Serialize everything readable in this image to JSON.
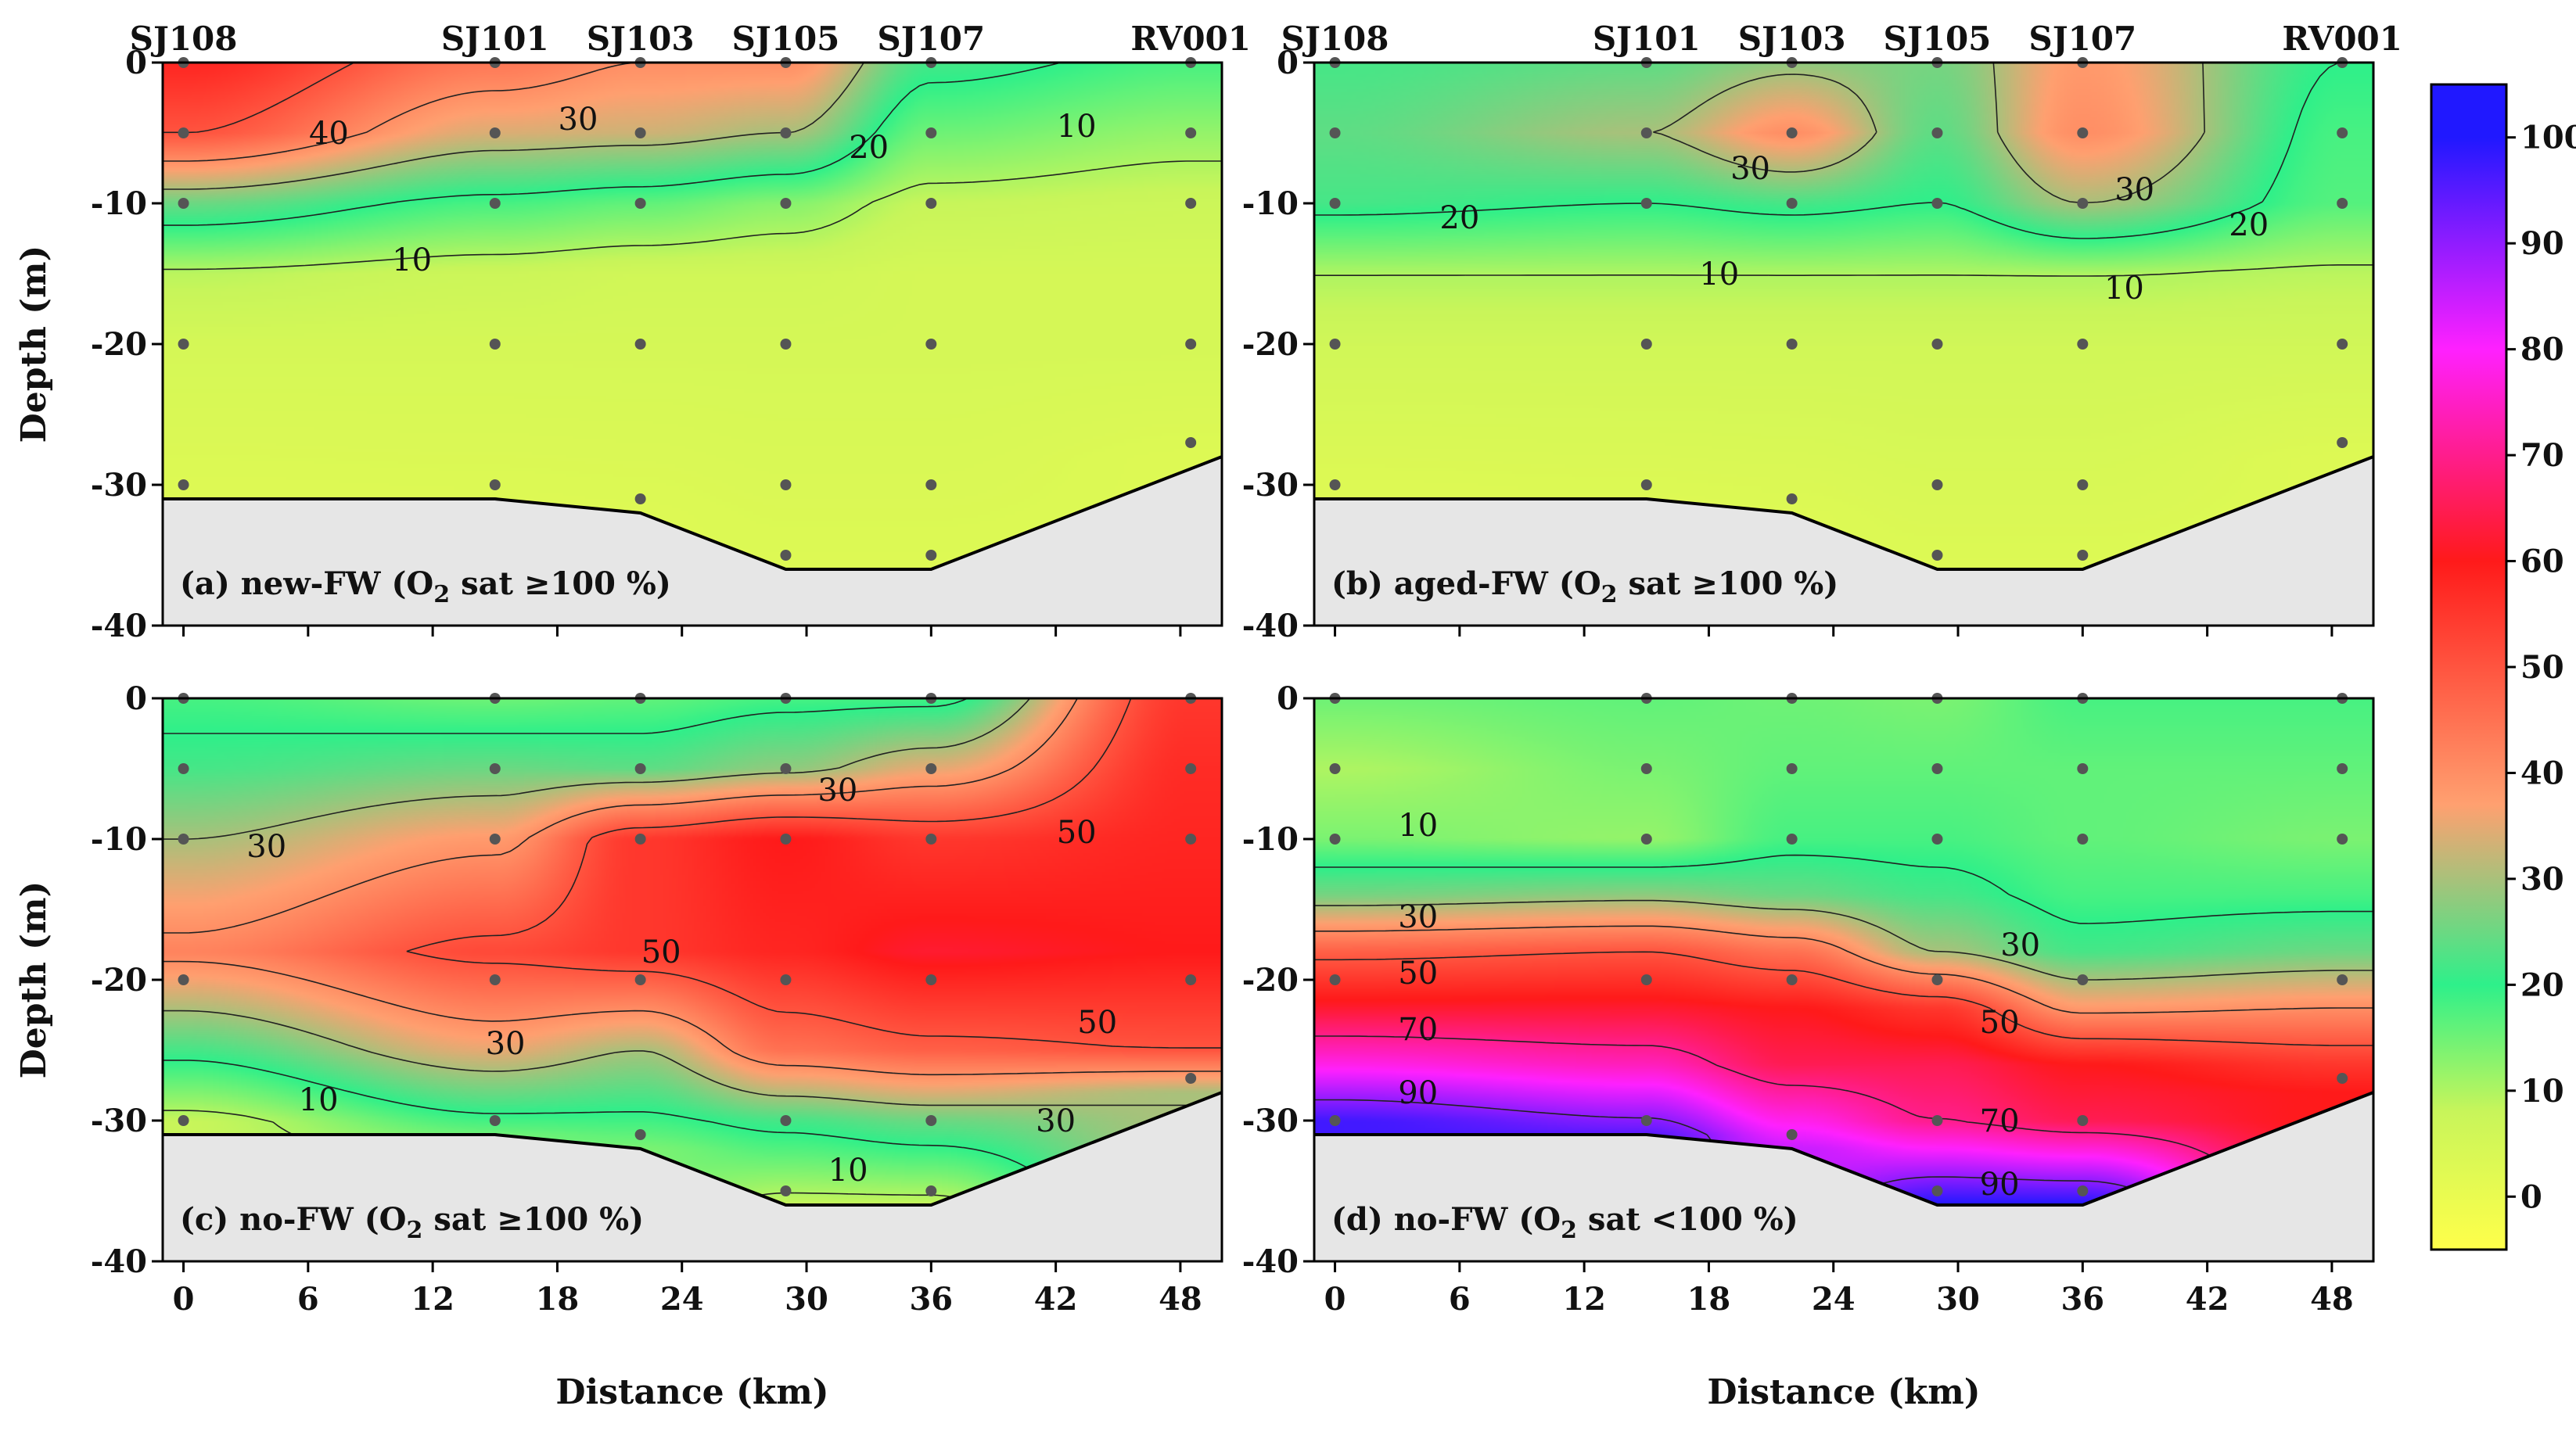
{
  "chart_data": {
    "type": "heatmap",
    "colorbar": {
      "ticks": [
        0,
        10,
        20,
        30,
        40,
        50,
        60,
        70,
        80,
        90,
        100
      ],
      "range": [
        -5,
        105
      ],
      "colors": [
        "#ffff4a",
        "#c8f55a",
        "#2ef08a",
        "#ffa070",
        "#ff1a1a",
        "#ff20ff",
        "#2018ff"
      ]
    },
    "stations": [
      {
        "name": "SJ108",
        "x": 0
      },
      {
        "name": "SJ101",
        "x": 15
      },
      {
        "name": "SJ103",
        "x": 22
      },
      {
        "name": "SJ105",
        "x": 29
      },
      {
        "name": "SJ107",
        "x": 36
      },
      {
        "name": "RV001",
        "x": 48.5
      }
    ],
    "bathymetry": [
      [
        -1,
        -31
      ],
      [
        15,
        -31
      ],
      [
        22,
        -32
      ],
      [
        29,
        -36
      ],
      [
        36,
        -36
      ],
      [
        50,
        -28
      ]
    ],
    "xlim": [
      -1,
      50
    ],
    "ylim": [
      -40,
      0
    ],
    "xticks": [
      0,
      6,
      12,
      18,
      24,
      30,
      36,
      42,
      48
    ],
    "yticks": [
      0,
      -10,
      -20,
      -30,
      -40
    ],
    "panels": [
      {
        "label_prefix": "(a) new-FW (O",
        "label_sub": "2",
        "label_suffix": " sat ≥100 %)",
        "xlabel": "",
        "ylabel": "Depth (m)",
        "stations_shown": true,
        "sample_depths": [
          [
            0,
            -5,
            -10,
            -20,
            -30
          ],
          [
            0,
            -5,
            -10,
            -20,
            -30
          ],
          [
            0,
            -5,
            -10,
            -20,
            -31
          ],
          [
            0,
            -5,
            -10,
            -20,
            -30,
            -35
          ],
          [
            0,
            -5,
            -10,
            -20,
            -30,
            -35
          ],
          [
            0,
            -5,
            -10,
            -20,
            -27
          ]
        ],
        "profiles": [
          [
            [
              0,
              58
            ],
            [
              -5,
              50
            ],
            [
              -10,
              25
            ],
            [
              -15,
              9
            ],
            [
              -20,
              5
            ],
            [
              -30,
              3
            ]
          ],
          [
            [
              0,
              44
            ],
            [
              -5,
              34
            ],
            [
              -10,
              18
            ],
            [
              -15,
              7
            ],
            [
              -20,
              5
            ],
            [
              -31,
              3
            ]
          ],
          [
            [
              0,
              40
            ],
            [
              -5,
              33
            ],
            [
              -10,
              16
            ],
            [
              -15,
              6
            ],
            [
              -20,
              5
            ],
            [
              -32,
              3
            ]
          ],
          [
            [
              0,
              40
            ],
            [
              -5,
              30
            ],
            [
              -10,
              13
            ],
            [
              -15,
              6
            ],
            [
              -20,
              5
            ],
            [
              -36,
              3
            ]
          ],
          [
            [
              0,
              22
            ],
            [
              -5,
              15
            ],
            [
              -10,
              8
            ],
            [
              -15,
              5
            ],
            [
              -20,
              5
            ],
            [
              -36,
              3
            ]
          ],
          [
            [
              0,
              18
            ],
            [
              -5,
              12
            ],
            [
              -10,
              7
            ],
            [
              -15,
              5
            ],
            [
              -20,
              5
            ],
            [
              -28,
              3
            ]
          ]
        ],
        "contour_labels": [
          {
            "text": "40",
            "x": 7,
            "y": -5
          },
          {
            "text": "30",
            "x": 19,
            "y": -4
          },
          {
            "text": "20",
            "x": 33,
            "y": -6
          },
          {
            "text": "10",
            "x": 43,
            "y": -4.5
          },
          {
            "text": "10",
            "x": 11,
            "y": -14
          }
        ]
      },
      {
        "label_prefix": "(b) aged-FW (O",
        "label_sub": "2",
        "label_suffix": " sat ≥100 %)",
        "xlabel": "",
        "ylabel": "",
        "stations_shown": true,
        "sample_depths": [
          [
            0,
            -5,
            -10,
            -20,
            -30
          ],
          [
            0,
            -5,
            -10,
            -20,
            -30
          ],
          [
            0,
            -5,
            -10,
            -20,
            -31
          ],
          [
            0,
            -5,
            -10,
            -20,
            -30,
            -35
          ],
          [
            0,
            -5,
            -10,
            -20,
            -30,
            -35
          ],
          [
            0,
            -5,
            -10,
            -20,
            -27
          ]
        ],
        "profiles": [
          [
            [
              0,
              22
            ],
            [
              -5,
              24
            ],
            [
              -10,
              22
            ],
            [
              -15,
              10
            ],
            [
              -20,
              6
            ],
            [
              -30,
              3
            ]
          ],
          [
            [
              0,
              24
            ],
            [
              -5,
              30
            ],
            [
              -10,
              20
            ],
            [
              -15,
              10
            ],
            [
              -20,
              6
            ],
            [
              -31,
              3
            ]
          ],
          [
            [
              0,
              28
            ],
            [
              -5,
              40
            ],
            [
              -10,
              22
            ],
            [
              -15,
              10
            ],
            [
              -20,
              6
            ],
            [
              -32,
              3
            ]
          ],
          [
            [
              0,
              26
            ],
            [
              -5,
              24
            ],
            [
              -10,
              20
            ],
            [
              -15,
              10
            ],
            [
              -20,
              6
            ],
            [
              -36,
              3
            ]
          ],
          [
            [
              0,
              38
            ],
            [
              -5,
              40
            ],
            [
              -10,
              30
            ],
            [
              -15,
              10
            ],
            [
              -20,
              6
            ],
            [
              -36,
              3
            ]
          ],
          [
            [
              0,
              20
            ],
            [
              -5,
              18
            ],
            [
              -10,
              17
            ],
            [
              -15,
              9
            ],
            [
              -20,
              6
            ],
            [
              -28,
              3
            ]
          ]
        ],
        "contour_labels": [
          {
            "text": "30",
            "x": 20,
            "y": -7.5
          },
          {
            "text": "20",
            "x": 6,
            "y": -11
          },
          {
            "text": "10",
            "x": 18.5,
            "y": -15
          },
          {
            "text": "30",
            "x": 38.5,
            "y": -9
          },
          {
            "text": "20",
            "x": 44,
            "y": -11.5
          },
          {
            "text": "10",
            "x": 38,
            "y": -16
          }
        ]
      },
      {
        "label_prefix": "(c) no-FW (O",
        "label_sub": "2",
        "label_suffix": " sat ≥100 %)",
        "xlabel": "Distance (km)",
        "ylabel": "Depth (m)",
        "stations_shown": false,
        "sample_depths": [
          [
            0,
            -5,
            -10,
            -20,
            -30
          ],
          [
            0,
            -5,
            -10,
            -20,
            -30
          ],
          [
            0,
            -5,
            -10,
            -20,
            -31
          ],
          [
            0,
            -5,
            -10,
            -20,
            -30,
            -35
          ],
          [
            0,
            -5,
            -10,
            -20,
            -30,
            -35
          ],
          [
            0,
            -5,
            -10,
            -20,
            -27
          ]
        ],
        "profiles": [
          [
            [
              0,
              18
            ],
            [
              -5,
              22
            ],
            [
              -10,
              30
            ],
            [
              -18,
              42
            ],
            [
              -25,
              22
            ],
            [
              -30,
              8
            ]
          ],
          [
            [
              0,
              15
            ],
            [
              -5,
              25
            ],
            [
              -10,
              38
            ],
            [
              -18,
              52
            ],
            [
              -25,
              35
            ],
            [
              -31,
              15
            ]
          ],
          [
            [
              0,
              16
            ],
            [
              -5,
              24
            ],
            [
              -10,
              55
            ],
            [
              -18,
              55
            ],
            [
              -25,
              30
            ],
            [
              -32,
              14
            ]
          ],
          [
            [
              0,
              18
            ],
            [
              -5,
              28
            ],
            [
              -10,
              60
            ],
            [
              -18,
              58
            ],
            [
              -25,
              45
            ],
            [
              -30,
              22
            ],
            [
              -36,
              8
            ]
          ],
          [
            [
              0,
              18
            ],
            [
              -5,
              35
            ],
            [
              -10,
              55
            ],
            [
              -18,
              62
            ],
            [
              -25,
              48
            ],
            [
              -30,
              25
            ],
            [
              -36,
              8
            ]
          ],
          [
            [
              0,
              55
            ],
            [
              -5,
              57
            ],
            [
              -10,
              58
            ],
            [
              -18,
              60
            ],
            [
              -25,
              50
            ],
            [
              -28,
              30
            ]
          ]
        ],
        "contour_labels": [
          {
            "text": "30",
            "x": 4,
            "y": -10.5
          },
          {
            "text": "30",
            "x": 31.5,
            "y": -6.5
          },
          {
            "text": "50",
            "x": 43,
            "y": -9.5
          },
          {
            "text": "50",
            "x": 23,
            "y": -18
          },
          {
            "text": "50",
            "x": 44,
            "y": -23
          },
          {
            "text": "30",
            "x": 15.5,
            "y": -24.5
          },
          {
            "text": "10",
            "x": 6.5,
            "y": -28.5
          },
          {
            "text": "30",
            "x": 42,
            "y": -30
          },
          {
            "text": "10",
            "x": 32,
            "y": -33.5
          }
        ]
      },
      {
        "label_prefix": "(d) no-FW (O",
        "label_sub": "2",
        "label_suffix": " sat <100 %)",
        "xlabel": "Distance (km)",
        "ylabel": "",
        "stations_shown": false,
        "sample_depths": [
          [
            0,
            -5,
            -10,
            -20,
            -30
          ],
          [
            0,
            -5,
            -10,
            -20,
            -30
          ],
          [
            0,
            -5,
            -10,
            -20,
            -31
          ],
          [
            0,
            -5,
            -10,
            -20,
            -30,
            -35
          ],
          [
            0,
            -5,
            -10,
            -20,
            -30,
            -35
          ],
          [
            0,
            -5,
            -10,
            -20,
            -27
          ]
        ],
        "profiles": [
          [
            [
              0,
              15
            ],
            [
              -5,
              10
            ],
            [
              -10,
              14
            ],
            [
              -14,
              26
            ],
            [
              -18,
              48
            ],
            [
              -22,
              62
            ],
            [
              -26,
              78
            ],
            [
              -30,
              97
            ]
          ],
          [
            [
              0,
              16
            ],
            [
              -5,
              14
            ],
            [
              -10,
              12
            ],
            [
              -14,
              28
            ],
            [
              -18,
              50
            ],
            [
              -22,
              62
            ],
            [
              -26,
              74
            ],
            [
              -31,
              95
            ]
          ],
          [
            [
              0,
              15
            ],
            [
              -5,
              16
            ],
            [
              -10,
              18
            ],
            [
              -14,
              25
            ],
            [
              -18,
              45
            ],
            [
              -22,
              60
            ],
            [
              -26,
              65
            ],
            [
              -32,
              85
            ]
          ],
          [
            [
              0,
              14
            ],
            [
              -5,
              16
            ],
            [
              -10,
              18
            ],
            [
              -14,
              22
            ],
            [
              -18,
              30
            ],
            [
              -22,
              55
            ],
            [
              -26,
              65
            ],
            [
              -30,
              70
            ],
            [
              -36,
              100
            ]
          ],
          [
            [
              0,
              18
            ],
            [
              -5,
              16
            ],
            [
              -10,
              16
            ],
            [
              -14,
              18
            ],
            [
              -18,
              22
            ],
            [
              -22,
              38
            ],
            [
              -26,
              60
            ],
            [
              -30,
              65
            ],
            [
              -36,
              100
            ]
          ],
          [
            [
              0,
              18
            ],
            [
              -5,
              16
            ],
            [
              -10,
              14
            ],
            [
              -14,
              18
            ],
            [
              -18,
              25
            ],
            [
              -22,
              40
            ],
            [
              -26,
              55
            ],
            [
              -28,
              60
            ]
          ]
        ],
        "contour_labels": [
          {
            "text": "10",
            "x": 4,
            "y": -9
          },
          {
            "text": "30",
            "x": 4,
            "y": -15.5
          },
          {
            "text": "50",
            "x": 4,
            "y": -19.5
          },
          {
            "text": "70",
            "x": 4,
            "y": -23.5
          },
          {
            "text": "90",
            "x": 4,
            "y": -28
          },
          {
            "text": "30",
            "x": 33,
            "y": -17.5
          },
          {
            "text": "50",
            "x": 32,
            "y": -23
          },
          {
            "text": "70",
            "x": 32,
            "y": -30
          },
          {
            "text": "90",
            "x": 32,
            "y": -34.5
          }
        ]
      }
    ]
  }
}
